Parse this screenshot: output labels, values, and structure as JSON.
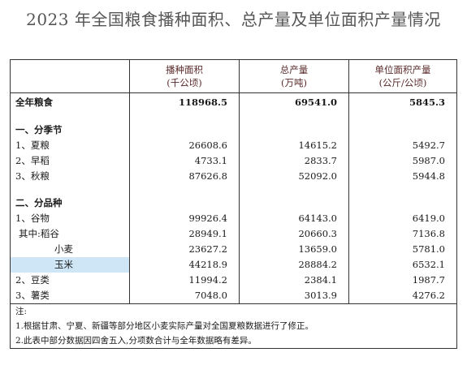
{
  "title": "2023 年全国粮食播种面积、总产量及单位面积产量情况",
  "header": {
    "col1": {
      "line1": "播种面积",
      "line2": "(千公顷)"
    },
    "col2": {
      "line1": "总产量",
      "line2": "(万吨)"
    },
    "col3": {
      "line1": "单位面积产量",
      "line2": "(公斤/公顷)"
    }
  },
  "total": {
    "label": "全年粮食",
    "area": "118968.5",
    "output": "69541.0",
    "yield": "5845.3"
  },
  "season": {
    "heading": "一、分季节",
    "rows": [
      {
        "label": "1、夏粮",
        "area": "26608.6",
        "output": "14615.2",
        "yield": "5492.7"
      },
      {
        "label": "2、早稻",
        "area": "4733.1",
        "output": "2833.7",
        "yield": "5987.0"
      },
      {
        "label": "3、秋粮",
        "area": "87626.8",
        "output": "52092.0",
        "yield": "5944.8"
      }
    ]
  },
  "variety": {
    "heading": "二、分品种",
    "rows": [
      {
        "label": "1、谷物",
        "area": "99926.4",
        "output": "64143.0",
        "yield": "6419.0"
      },
      {
        "label": "其中:稻谷",
        "area": "28949.1",
        "output": "20660.3",
        "yield": "7136.8"
      },
      {
        "label": "小麦",
        "area": "23627.2",
        "output": "13659.0",
        "yield": "5781.0"
      },
      {
        "label": "玉米",
        "area": "44218.9",
        "output": "28884.2",
        "yield": "6532.1"
      },
      {
        "label": "2、豆类",
        "area": "11994.2",
        "output": "2384.1",
        "yield": "1987.7"
      },
      {
        "label": "3、薯类",
        "area": "7048.0",
        "output": "3013.9",
        "yield": "4276.2"
      }
    ]
  },
  "notes": {
    "heading": "注:",
    "n1": "1.根据甘肃、宁夏、新疆等部分地区小麦实际产量对全国夏粮数据进行了修正。",
    "n2": "2.此表中部分数据因四舍五入,分项数合计与全年数据略有差异。"
  }
}
